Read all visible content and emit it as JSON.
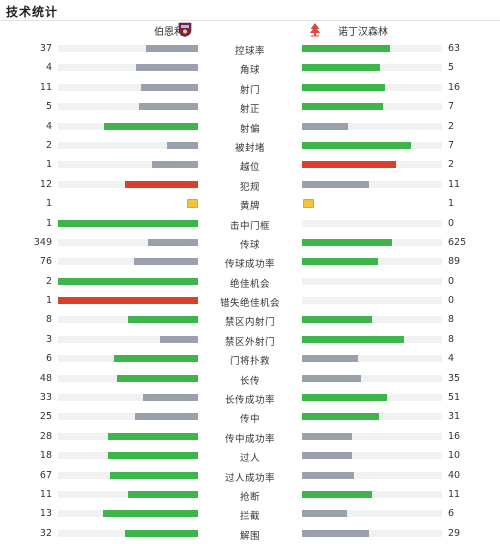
{
  "title": "技术统计",
  "colors": {
    "win": "#3eb54a",
    "lose": "#9aa1ac",
    "red": "#d9402b",
    "track": "#f1f1f1"
  },
  "home": {
    "name": "伯恩利",
    "crest_icon": "burnley-crest-icon",
    "crest_color": "#7a2348"
  },
  "away": {
    "name": "诺丁汉森林",
    "crest_icon": "forest-tree-icon",
    "crest_color": "#e0463a"
  },
  "stats": [
    {
      "label": "控球率",
      "home": "37",
      "away": "63",
      "home_pct": 37,
      "away_pct": 63,
      "type": "bar"
    },
    {
      "label": "角球",
      "home": "4",
      "away": "5",
      "home_pct": 44,
      "away_pct": 56,
      "type": "bar"
    },
    {
      "label": "射门",
      "home": "11",
      "away": "16",
      "home_pct": 41,
      "away_pct": 59,
      "type": "bar"
    },
    {
      "label": "射正",
      "home": "5",
      "away": "7",
      "home_pct": 42,
      "away_pct": 58,
      "type": "bar"
    },
    {
      "label": "射偏",
      "home": "4",
      "away": "2",
      "home_pct": 67,
      "away_pct": 33,
      "type": "bar"
    },
    {
      "label": "被封堵",
      "home": "2",
      "away": "7",
      "home_pct": 22,
      "away_pct": 78,
      "type": "bar"
    },
    {
      "label": "越位",
      "home": "1",
      "away": "2",
      "home_pct": 33,
      "away_pct": 67,
      "type": "bar",
      "away_red": true
    },
    {
      "label": "犯规",
      "home": "12",
      "away": "11",
      "home_pct": 52,
      "away_pct": 48,
      "type": "bar",
      "home_red": true
    },
    {
      "label": "黄牌",
      "home": "1",
      "away": "1",
      "type": "card"
    },
    {
      "label": "击中门框",
      "home": "1",
      "away": "0",
      "home_pct": 100,
      "away_pct": 0,
      "type": "bar"
    },
    {
      "label": "传球",
      "home": "349",
      "away": "625",
      "home_pct": 36,
      "away_pct": 64,
      "type": "bar"
    },
    {
      "label": "传球成功率",
      "home": "76",
      "away": "89",
      "home_pct": 46,
      "away_pct": 54,
      "type": "bar"
    },
    {
      "label": "绝佳机会",
      "home": "2",
      "away": "0",
      "home_pct": 100,
      "away_pct": 0,
      "type": "bar"
    },
    {
      "label": "错失绝佳机会",
      "home": "1",
      "away": "0",
      "home_pct": 100,
      "away_pct": 0,
      "type": "bar",
      "home_red": true
    },
    {
      "label": "禁区内射门",
      "home": "8",
      "away": "8",
      "home_pct": 50,
      "away_pct": 50,
      "type": "bar",
      "tie": true
    },
    {
      "label": "禁区外射门",
      "home": "3",
      "away": "8",
      "home_pct": 27,
      "away_pct": 73,
      "type": "bar"
    },
    {
      "label": "门将扑救",
      "home": "6",
      "away": "4",
      "home_pct": 60,
      "away_pct": 40,
      "type": "bar"
    },
    {
      "label": "长传",
      "home": "48",
      "away": "35",
      "home_pct": 58,
      "away_pct": 42,
      "type": "bar"
    },
    {
      "label": "长传成功率",
      "home": "33",
      "away": "51",
      "home_pct": 39,
      "away_pct": 61,
      "type": "bar"
    },
    {
      "label": "传中",
      "home": "25",
      "away": "31",
      "home_pct": 45,
      "away_pct": 55,
      "type": "bar"
    },
    {
      "label": "传中成功率",
      "home": "28",
      "away": "16",
      "home_pct": 64,
      "away_pct": 36,
      "type": "bar"
    },
    {
      "label": "过人",
      "home": "18",
      "away": "10",
      "home_pct": 64,
      "away_pct": 36,
      "type": "bar"
    },
    {
      "label": "过人成功率",
      "home": "67",
      "away": "40",
      "home_pct": 63,
      "away_pct": 37,
      "type": "bar"
    },
    {
      "label": "抢断",
      "home": "11",
      "away": "11",
      "home_pct": 50,
      "away_pct": 50,
      "type": "bar",
      "tie": true
    },
    {
      "label": "拦截",
      "home": "13",
      "away": "6",
      "home_pct": 68,
      "away_pct": 32,
      "type": "bar"
    },
    {
      "label": "解围",
      "home": "32",
      "away": "29",
      "home_pct": 52,
      "away_pct": 48,
      "type": "bar"
    }
  ]
}
